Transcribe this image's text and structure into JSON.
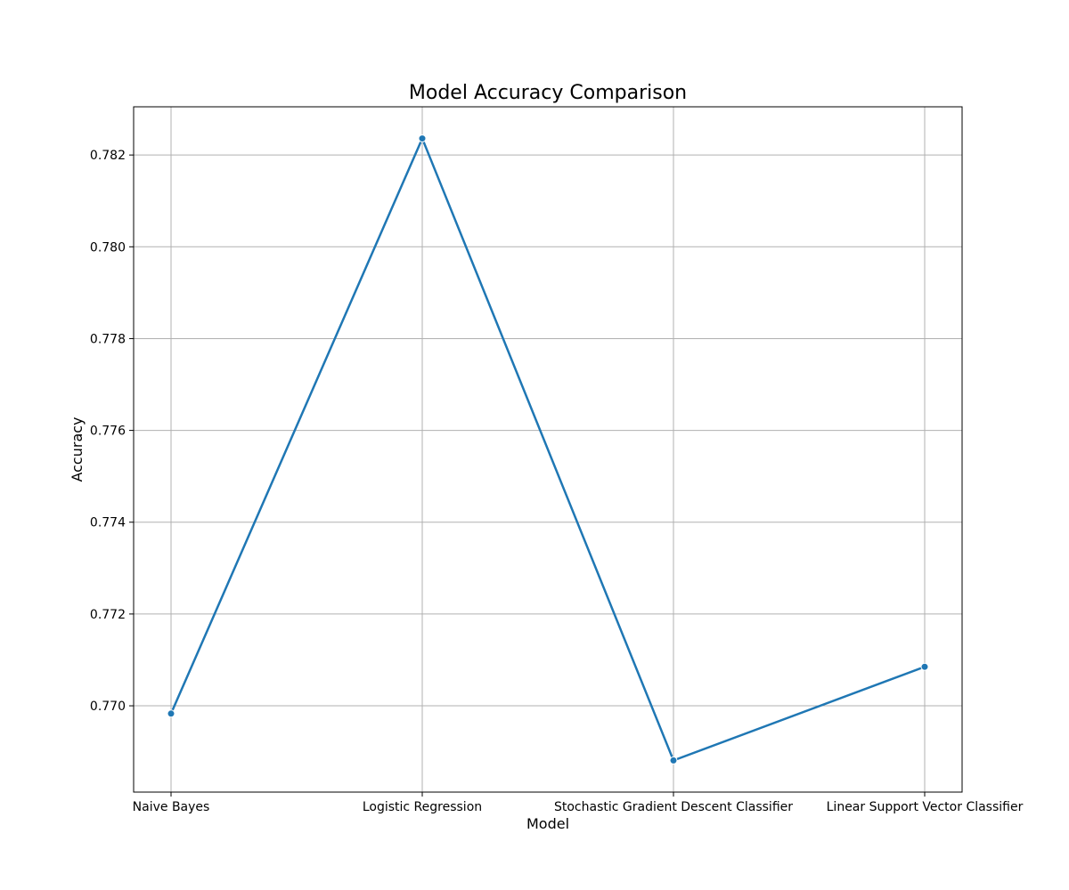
{
  "chart_data": {
    "type": "line",
    "title": "Model Accuracy Comparison",
    "xlabel": "Model",
    "ylabel": "Accuracy",
    "categories": [
      "Naive Bayes",
      "Logistic Regression",
      "Stochastic Gradient Descent Classifier",
      "Linear Support Vector Classifier"
    ],
    "series": [
      {
        "values": [
          0.76983,
          0.78236,
          0.76881,
          0.77085
        ],
        "color": "#1f77b4",
        "marker": "circle"
      }
    ],
    "yticks": [
      "0.770",
      "0.772",
      "0.774",
      "0.776",
      "0.778",
      "0.780",
      "0.782"
    ],
    "ylim": [
      0.76812,
      0.78305
    ],
    "grid": true,
    "legend": "none"
  }
}
